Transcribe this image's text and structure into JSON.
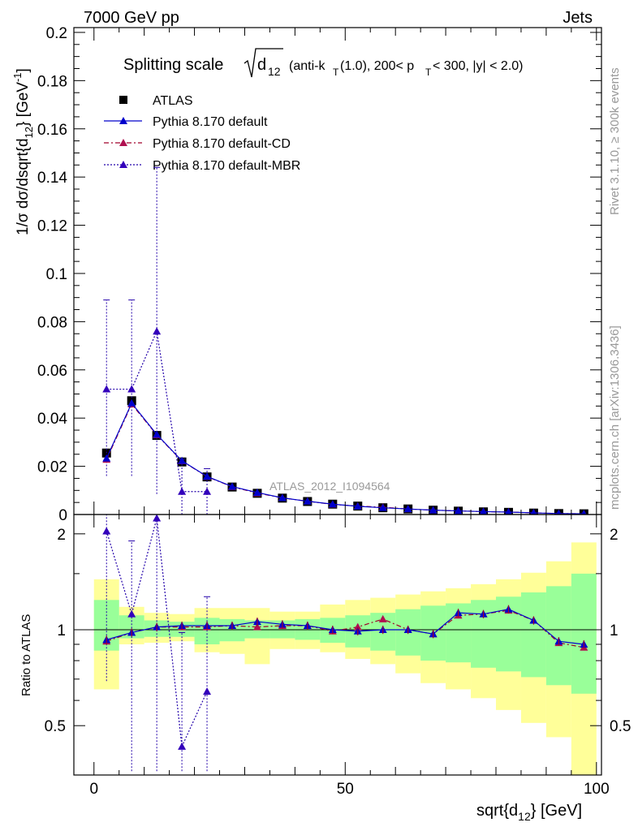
{
  "header": {
    "left": "7000 GeV pp",
    "right": "Jets"
  },
  "side_labels": {
    "top": "Rivet 3.1.10, ≥ 300k events",
    "bottom": "mcplots.cern.ch [arXiv:1306.3436]"
  },
  "watermark": "ATLAS_2012_I1094564",
  "title": {
    "main": "Splitting scale",
    "formula": "d",
    "formula_sub": "12",
    "cuts_1": "(anti-k",
    "cuts_1_sub": "T",
    "cuts_2": "(1.0), 200< p",
    "cuts_2_sub": "T",
    "cuts_3": " < 300, |y| < 2.0)"
  },
  "axes": {
    "top_ylabel": "1/σ dσ/dsqrt{d",
    "top_ylabel_sub": "12",
    "top_ylabel_tail": "} [GeV",
    "top_ylabel_sup": "-1",
    "top_ylabel_end": "]",
    "bottom_ylabel": "Ratio to ATLAS",
    "xlabel": "sqrt{d",
    "xlabel_sub": "12",
    "xlabel_tail": "} [GeV]"
  },
  "colors": {
    "data": "#000000",
    "default": "#0000cc",
    "cd": "#a0002a",
    "cd_marker": "#b01050",
    "mbr": "#2200aa",
    "mbr_marker": "#3300bb",
    "band_inner": "#99ff99",
    "band_outer": "#ffff99"
  },
  "chart_data": [
    {
      "type": "scatter",
      "panel": "main",
      "xlim": [
        -4,
        101
      ],
      "ylim": [
        0,
        0.202
      ],
      "yticks": [
        {
          "v": 0,
          "label": "0"
        },
        {
          "v": 0.02,
          "label": "0.02"
        },
        {
          "v": 0.04,
          "label": "0.04"
        },
        {
          "v": 0.06,
          "label": "0.06"
        },
        {
          "v": 0.08,
          "label": "0.08"
        },
        {
          "v": 0.1,
          "label": "0.1"
        },
        {
          "v": 0.12,
          "label": "0.12"
        },
        {
          "v": 0.14,
          "label": "0.14"
        },
        {
          "v": 0.16,
          "label": "0.16"
        },
        {
          "v": 0.18,
          "label": "0.18"
        },
        {
          "v": 0.2,
          "label": "0.2"
        }
      ],
      "x": [
        2.5,
        7.5,
        12.5,
        17.5,
        22.5,
        27.5,
        32.5,
        37.5,
        42.5,
        47.5,
        52.5,
        57.5,
        62.5,
        67.5,
        72.5,
        77.5,
        82.5,
        87.5,
        92.5,
        97.5
      ],
      "series": [
        {
          "name": "ATLAS",
          "key": "data",
          "marker": "square",
          "values": [
            0.0255,
            0.0472,
            0.0328,
            0.0218,
            0.0156,
            0.0114,
            0.0088,
            0.0068,
            0.0054,
            0.0043,
            0.0035,
            0.0028,
            0.0023,
            0.0018,
            0.0014,
            0.0011,
            0.0009,
            0.0006,
            0.0004,
            0.0003
          ]
        },
        {
          "name": "Pythia 8.170 default",
          "key": "default",
          "marker": "triangle",
          "dash": "",
          "values": [
            0.0233,
            0.0462,
            0.0332,
            0.0223,
            0.0158,
            0.0116,
            0.0091,
            0.0069,
            0.0055,
            0.0043,
            0.0034,
            0.0028,
            0.0023,
            0.0018,
            0.0015,
            0.0012,
            0.001,
            0.0007,
            0.0004,
            0.0003
          ]
        },
        {
          "name": "Pythia 8.170 default-CD",
          "key": "cd",
          "marker": "triangle",
          "dash": "6,3,2,3",
          "values": [
            0.0228,
            0.0458,
            0.033,
            0.0222,
            0.0157,
            0.0115,
            0.0089,
            0.0069,
            0.0055,
            0.0042,
            0.0035,
            0.003,
            0.0023,
            0.0018,
            0.0015,
            0.0012,
            0.001,
            0.0007,
            0.0004,
            0.0003
          ]
        },
        {
          "name": "Pythia 8.170 default-MBR",
          "key": "mbr",
          "marker": "triangle",
          "dash": "2,2",
          "values": [
            0.052,
            0.052,
            0.076,
            0.0095,
            0.0095,
            null,
            null,
            null,
            null,
            null,
            null,
            null,
            null,
            null,
            null,
            null,
            null,
            null,
            null,
            null
          ],
          "err_lo": [
            0.016,
            0.016,
            0.0085,
            0.0,
            0.0
          ],
          "err_hi": [
            0.089,
            0.089,
            0.144,
            0.023,
            0.019
          ]
        }
      ],
      "legend_position": "top-left"
    },
    {
      "type": "scatter",
      "panel": "ratio",
      "xlim": [
        -4,
        101
      ],
      "ylim": [
        0.35,
        2.3
      ],
      "yticks": [
        {
          "v": 0.5,
          "label": "0.5"
        },
        {
          "v": 1,
          "label": "1"
        },
        {
          "v": 2,
          "label": "2"
        }
      ],
      "xticks": [
        {
          "v": 0,
          "label": "0"
        },
        {
          "v": 50,
          "label": "50"
        },
        {
          "v": 100,
          "label": "100"
        }
      ],
      "bins": [
        0,
        5,
        10,
        15,
        20,
        25,
        30,
        35,
        40,
        45,
        50,
        55,
        60,
        65,
        70,
        75,
        80,
        85,
        90,
        95,
        100
      ],
      "band_inner": [
        [
          0.86,
          1.24
        ],
        [
          0.94,
          1.11
        ],
        [
          0.95,
          1.07
        ],
        [
          0.95,
          1.06
        ],
        [
          0.9,
          1.09
        ],
        [
          0.92,
          1.08
        ],
        [
          0.94,
          1.07
        ],
        [
          0.94,
          1.07
        ],
        [
          0.93,
          1.08
        ],
        [
          0.91,
          1.09
        ],
        [
          0.88,
          1.11
        ],
        [
          0.86,
          1.13
        ],
        [
          0.83,
          1.16
        ],
        [
          0.8,
          1.19
        ],
        [
          0.79,
          1.21
        ],
        [
          0.76,
          1.24
        ],
        [
          0.74,
          1.27
        ],
        [
          0.71,
          1.31
        ],
        [
          0.67,
          1.37
        ],
        [
          0.63,
          1.5
        ]
      ],
      "band_outer": [
        [
          0.65,
          1.44
        ],
        [
          0.9,
          1.18
        ],
        [
          0.91,
          1.13
        ],
        [
          0.92,
          1.12
        ],
        [
          0.85,
          1.17
        ],
        [
          0.84,
          1.17
        ],
        [
          0.78,
          1.17
        ],
        [
          0.87,
          1.14
        ],
        [
          0.87,
          1.14
        ],
        [
          0.85,
          1.2
        ],
        [
          0.81,
          1.24
        ],
        [
          0.78,
          1.26
        ],
        [
          0.73,
          1.29
        ],
        [
          0.68,
          1.32
        ],
        [
          0.65,
          1.35
        ],
        [
          0.61,
          1.39
        ],
        [
          0.56,
          1.44
        ],
        [
          0.51,
          1.51
        ],
        [
          0.46,
          1.64
        ],
        [
          0.35,
          1.88
        ]
      ],
      "x": [
        2.5,
        7.5,
        12.5,
        17.5,
        22.5,
        27.5,
        32.5,
        37.5,
        42.5,
        47.5,
        52.5,
        57.5,
        62.5,
        67.5,
        72.5,
        77.5,
        82.5,
        87.5,
        92.5,
        97.5
      ],
      "series": [
        {
          "name": "Pythia 8.170 default",
          "key": "default",
          "dash": "",
          "values": [
            0.93,
            0.98,
            1.02,
            1.03,
            1.03,
            1.03,
            1.06,
            1.04,
            1.03,
            1.0,
            0.99,
            1.0,
            1.0,
            0.97,
            1.13,
            1.12,
            1.16,
            1.07,
            0.92,
            0.9
          ]
        },
        {
          "name": "Pythia 8.170 default-CD",
          "key": "cd",
          "dash": "6,3,2,3",
          "values": [
            0.92,
            0.98,
            1.02,
            1.02,
            1.02,
            1.03,
            1.02,
            1.03,
            1.03,
            0.99,
            1.02,
            1.08,
            1.0,
            0.97,
            1.11,
            1.12,
            1.15,
            1.07,
            0.91,
            0.88
          ]
        },
        {
          "name": "Pythia 8.170 default-MBR",
          "key": "mbr",
          "dash": "2,2",
          "values": [
            2.04,
            1.12,
            2.24,
            0.43,
            0.64
          ],
          "err_lo": [
            0.69,
            0.35,
            0.35,
            0.35,
            0.35
          ],
          "err_hi": [
            2.3,
            1.9,
            2.3,
            0.98,
            1.27
          ]
        }
      ]
    }
  ]
}
